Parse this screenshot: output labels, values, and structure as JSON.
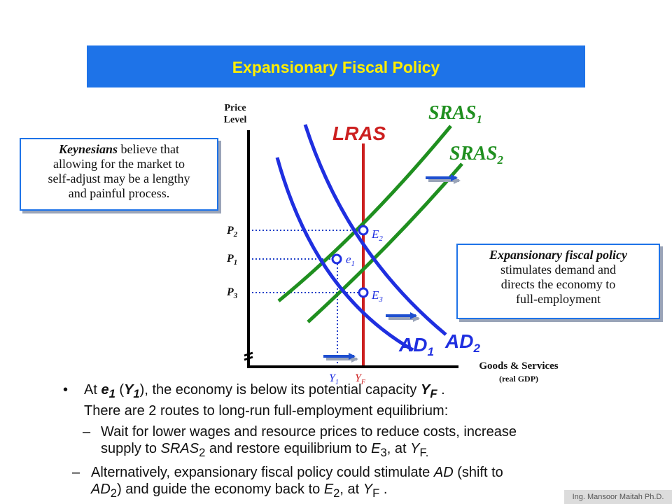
{
  "title": "Expansionary Fiscal Policy",
  "diagram": {
    "y_axis_label_1": "Price",
    "y_axis_label_2": "Level",
    "x_axis_label_1": "Goods & Services",
    "x_axis_label_2": "(real GDP)",
    "curves": {
      "sras1": "SRAS",
      "sras1_sub": "1",
      "sras2": "SRAS",
      "sras2_sub": "2",
      "lras": "LRAS",
      "ad1": "AD",
      "ad1_sub": "1",
      "ad2": "AD",
      "ad2_sub": "2"
    },
    "prices": {
      "p2": "P",
      "p2_sub": "2",
      "p1": "P",
      "p1_sub": "1",
      "p3": "P",
      "p3_sub": "3"
    },
    "points": {
      "e2": "E",
      "e2_sub": "2",
      "e1": "e",
      "e1_sub": "1",
      "e3": "E",
      "e3_sub": "3"
    },
    "outputs": {
      "y1": "Y",
      "y1_sub": "1",
      "yf": "Y",
      "yf_sub": "F"
    },
    "colors": {
      "lras": "#cc1f1f",
      "ad": "#1f2fe0",
      "sras": "#1f8f1f",
      "dotted": "#2040c8",
      "arrow": "#1e4fd0"
    }
  },
  "keynesian_box": {
    "word": "Keynesians",
    "rest_1": " believe that",
    "line_2": "allowing for the market to",
    "line_3": "self-adjust may be a lengthy",
    "line_4": "and painful process."
  },
  "fiscal_box": {
    "line_1": "Expansionary fiscal policy",
    "line_2": "stimulates demand and",
    "line_3": "directs the economy to",
    "line_4": "full-employment"
  },
  "bullets": {
    "b1_a": "At ",
    "b1_e": "e",
    "b1_e_sub": "1",
    "b1_b": " (",
    "b1_y": "Y",
    "b1_y_sub": "1",
    "b1_c": "), the economy is below its potential capacity ",
    "b1_yf": "Y",
    "b1_yf_sub": "F",
    "b1_d": " .",
    "b1_line2": "There are 2 routes to long-run full-employment equilibrium:",
    "s1_dash": "–",
    "s1_line1": "Wait for lower wages and resource prices to reduce costs, increase",
    "s1_l2_a": "supply to ",
    "s1_l2_sras": "SRAS",
    "s1_l2_sras_sub": "2",
    "s1_l2_b": " and restore equilibrium to ",
    "s1_l2_e": "E",
    "s1_l2_e_sub": "3",
    "s1_l2_c": ", at ",
    "s1_l2_y": "Y",
    "s1_l2_y_sub": "F.",
    "s2_dash": "–",
    "s2_l1_a": "Alternatively, expansionary fiscal policy could stimulate ",
    "s2_l1_ad": "AD",
    "s2_l1_b": " (shift to",
    "s2_l2_ad": "AD",
    "s2_l2_ad_sub": "2",
    "s2_l2_a": ") and guide the economy back to ",
    "s2_l2_e": "E",
    "s2_l2_e_sub": "2",
    "s2_l2_b": ", at ",
    "s2_l2_y": "Y",
    "s2_l2_y_sub": "F",
    "s2_l2_c": " ."
  },
  "footer": "Ing. Mansoor Maitah Ph.D."
}
